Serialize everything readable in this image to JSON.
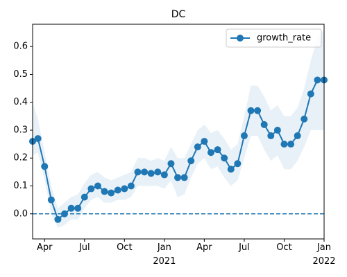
{
  "chart_data": {
    "type": "line",
    "title": "DC",
    "x": [
      -0.9,
      -0.5,
      0,
      0.5,
      1,
      1.5,
      2,
      2.5,
      3,
      3.5,
      4,
      4.5,
      5,
      5.5,
      6,
      6.5,
      7,
      7.5,
      8,
      8.5,
      9,
      9.5,
      10,
      10.5,
      11,
      11.5,
      12,
      12.5,
      13,
      13.5,
      14,
      14.5,
      15,
      15.5,
      16,
      16.5,
      17,
      17.5,
      18,
      18.5,
      19,
      19.5,
      20,
      20.5,
      21
    ],
    "series": [
      {
        "name": "growth_rate",
        "color": "#1f77b4",
        "values": [
          0.26,
          0.27,
          0.17,
          0.05,
          -0.02,
          0.0,
          0.02,
          0.02,
          0.06,
          0.09,
          0.1,
          0.08,
          0.075,
          0.085,
          0.09,
          0.1,
          0.15,
          0.15,
          0.145,
          0.15,
          0.14,
          0.18,
          0.13,
          0.13,
          0.19,
          0.24,
          0.26,
          0.22,
          0.23,
          0.2,
          0.16,
          0.18,
          0.28,
          0.37,
          0.37,
          0.32,
          0.28,
          0.3,
          0.25,
          0.25,
          0.28,
          0.34,
          0.43,
          0.48,
          0.48
        ],
        "lower": [
          0.21,
          0.22,
          0.12,
          0.0,
          -0.05,
          -0.04,
          -0.02,
          -0.02,
          0.02,
          0.05,
          0.06,
          0.04,
          0.04,
          0.05,
          0.05,
          0.06,
          0.1,
          0.1,
          0.1,
          0.1,
          0.09,
          0.12,
          0.06,
          0.07,
          0.13,
          0.18,
          0.2,
          0.16,
          0.17,
          0.13,
          0.1,
          0.12,
          0.2,
          0.28,
          0.28,
          0.23,
          0.19,
          0.21,
          0.16,
          0.16,
          0.19,
          0.24,
          0.3,
          0.3,
          0.3
        ],
        "upper": [
          0.4,
          0.34,
          0.22,
          0.1,
          0.02,
          0.04,
          0.06,
          0.07,
          0.11,
          0.14,
          0.15,
          0.13,
          0.12,
          0.13,
          0.14,
          0.15,
          0.2,
          0.2,
          0.19,
          0.2,
          0.19,
          0.24,
          0.2,
          0.2,
          0.25,
          0.3,
          0.32,
          0.29,
          0.3,
          0.27,
          0.23,
          0.25,
          0.35,
          0.46,
          0.46,
          0.42,
          0.37,
          0.39,
          0.35,
          0.35,
          0.38,
          0.45,
          0.55,
          0.63,
          0.66
        ]
      }
    ],
    "xlim": [
      -0.9,
      21
    ],
    "xticks": [
      {
        "value": 0,
        "label": "Apr"
      },
      {
        "value": 3,
        "label": "Jul"
      },
      {
        "value": 6,
        "label": "Oct"
      },
      {
        "value": 9,
        "label": "Jan\n2021"
      },
      {
        "value": 12,
        "label": "Apr"
      },
      {
        "value": 15,
        "label": "Jul"
      },
      {
        "value": 18,
        "label": "Oct"
      },
      {
        "value": 21,
        "label": "Jan\n2022"
      }
    ],
    "ylim": [
      -0.09,
      0.68
    ],
    "yticks": [
      {
        "value": 0,
        "label": "0.0"
      },
      0.1,
      0.2,
      0.3,
      0.4,
      0.5,
      0.6
    ],
    "reference_line": 0,
    "legend": "upper right"
  }
}
